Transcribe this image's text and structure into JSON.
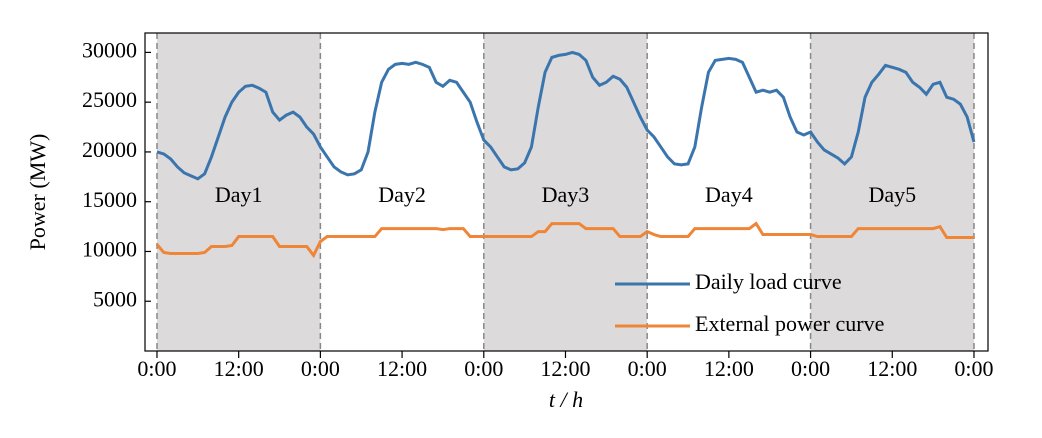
{
  "chart_data": {
    "type": "line",
    "ylabel": "Power (MW)",
    "xlabel": "t / h",
    "x": [
      0,
      1,
      2,
      3,
      4,
      5,
      6,
      7,
      8,
      9,
      10,
      11,
      12,
      13,
      14,
      15,
      16,
      17,
      18,
      19,
      20,
      21,
      22,
      23,
      24,
      25,
      26,
      27,
      28,
      29,
      30,
      31,
      32,
      33,
      34,
      35,
      36,
      37,
      38,
      39,
      40,
      41,
      42,
      43,
      44,
      45,
      46,
      47,
      48,
      49,
      50,
      51,
      52,
      53,
      54,
      55,
      56,
      57,
      58,
      59,
      60,
      61,
      62,
      63,
      64,
      65,
      66,
      67,
      68,
      69,
      70,
      71,
      72,
      73,
      74,
      75,
      76,
      77,
      78,
      79,
      80,
      81,
      82,
      83,
      84,
      85,
      86,
      87,
      88,
      89,
      90,
      91,
      92,
      93,
      94,
      95,
      96,
      97,
      98,
      99,
      100,
      101,
      102,
      103,
      104,
      105,
      106,
      107,
      108,
      109,
      110,
      111,
      112,
      113,
      114,
      115,
      116,
      117,
      118,
      119,
      120
    ],
    "series": [
      {
        "name": "Daily load curve",
        "color": "#3a75ae",
        "values": [
          20000,
          19800,
          19300,
          18500,
          17900,
          17600,
          17300,
          17800,
          19500,
          21500,
          23500,
          25000,
          26000,
          26600,
          26700,
          26400,
          26000,
          24000,
          23200,
          23700,
          24000,
          23500,
          22500,
          21800,
          20500,
          19500,
          18500,
          18000,
          17700,
          17800,
          18200,
          20000,
          24000,
          27000,
          28300,
          28800,
          28900,
          28800,
          29000,
          28800,
          28500,
          27000,
          26600,
          27200,
          27000,
          26000,
          25000,
          23000,
          21200,
          20500,
          19500,
          18500,
          18200,
          18300,
          18900,
          20500,
          24500,
          28000,
          29500,
          29700,
          29800,
          30000,
          29800,
          29200,
          27500,
          26700,
          27000,
          27600,
          27300,
          26500,
          25000,
          23500,
          22200,
          21500,
          20500,
          19500,
          18800,
          18700,
          18800,
          20500,
          24500,
          28000,
          29200,
          29300,
          29400,
          29300,
          29000,
          27500,
          26000,
          26200,
          26000,
          26200,
          25500,
          23500,
          22000,
          21700,
          22000,
          21000,
          20200,
          19800,
          19400,
          18800,
          19500,
          22000,
          25500,
          27000,
          27800,
          28700,
          28500,
          28300,
          28000,
          27000,
          26500,
          25800,
          26800,
          27000,
          25500,
          25300,
          24800,
          23500,
          21000
        ]
      },
      {
        "name": "External power curve",
        "color": "#ef8536",
        "values": [
          10700,
          9900,
          9800,
          9800,
          9800,
          9800,
          9800,
          9900,
          10500,
          10500,
          10500,
          10600,
          11500,
          11500,
          11500,
          11500,
          11500,
          11500,
          10500,
          10500,
          10500,
          10500,
          10500,
          9600,
          11000,
          11500,
          11500,
          11500,
          11500,
          11500,
          11500,
          11500,
          11500,
          12300,
          12300,
          12300,
          12300,
          12300,
          12300,
          12300,
          12300,
          12300,
          12200,
          12300,
          12300,
          12300,
          11500,
          11500,
          11500,
          11500,
          11500,
          11500,
          11500,
          11500,
          11500,
          11500,
          12000,
          12000,
          12800,
          12800,
          12800,
          12800,
          12800,
          12300,
          12300,
          12300,
          12300,
          12300,
          11500,
          11500,
          11500,
          11500,
          12000,
          11700,
          11500,
          11500,
          11500,
          11500,
          11500,
          12300,
          12300,
          12300,
          12300,
          12300,
          12300,
          12300,
          12300,
          12300,
          12800,
          11700,
          11700,
          11700,
          11700,
          11700,
          11700,
          11700,
          11700,
          11500,
          11500,
          11500,
          11500,
          11500,
          11500,
          12300,
          12300,
          12300,
          12300,
          12300,
          12300,
          12300,
          12300,
          12300,
          12300,
          12300,
          12300,
          12500,
          11400,
          11400,
          11400,
          11400,
          11400
        ]
      }
    ],
    "shaded_spans": [
      [
        0,
        24
      ],
      [
        48,
        72
      ],
      [
        96,
        120
      ]
    ],
    "annotations": [
      {
        "text": "Day1",
        "x": 12,
        "y": 15500
      },
      {
        "text": "Day2",
        "x": 36,
        "y": 15500
      },
      {
        "text": "Day3",
        "x": 60,
        "y": 15500
      },
      {
        "text": "Day4",
        "x": 84,
        "y": 15500
      },
      {
        "text": "Day5",
        "x": 108,
        "y": 15500
      }
    ],
    "xlim": [
      -1.76,
      122.06
    ],
    "ylim": [
      0,
      31950
    ],
    "xticks": [
      {
        "value": 0,
        "label": "0:00"
      },
      {
        "value": 12,
        "label": "12:00"
      },
      {
        "value": 24,
        "label": "0:00"
      },
      {
        "value": 36,
        "label": "12:00"
      },
      {
        "value": 48,
        "label": "0:00"
      },
      {
        "value": 60,
        "label": "12:00"
      },
      {
        "value": 72,
        "label": "0:00"
      },
      {
        "value": 84,
        "label": "12:00"
      },
      {
        "value": 96,
        "label": "0:00"
      },
      {
        "value": 108,
        "label": "12:00"
      },
      {
        "value": 120,
        "label": "0:00"
      }
    ],
    "yticks": [
      5000,
      10000,
      15000,
      20000,
      25000,
      30000
    ],
    "legend": "lower right",
    "grid": false
  }
}
